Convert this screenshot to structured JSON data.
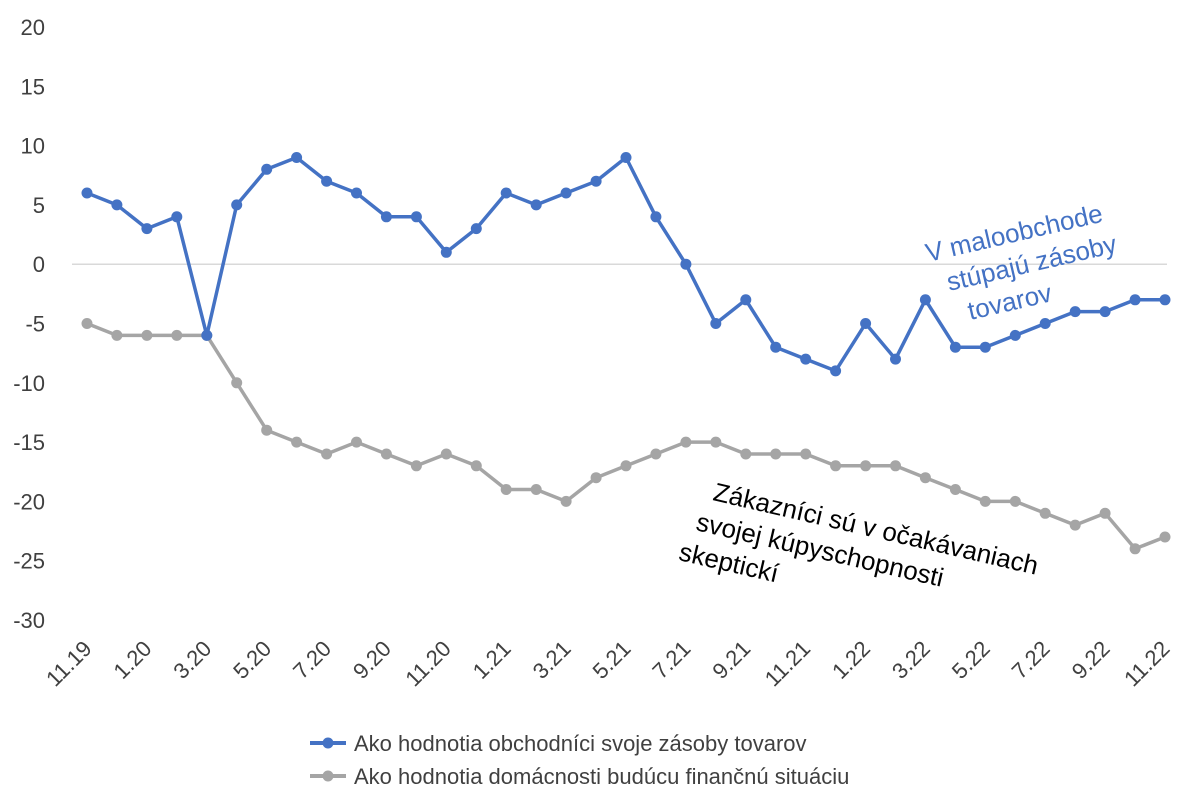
{
  "colors": {
    "series1": "#4472C4",
    "series2": "#A5A5A5",
    "axis": "#D9D9D9",
    "text": "#404040"
  },
  "chart_data": {
    "type": "line",
    "title": "",
    "xlabel": "",
    "ylabel": "",
    "ylim": [
      -30,
      20
    ],
    "yticks": [
      20,
      15,
      10,
      5,
      0,
      -5,
      -10,
      -15,
      -20,
      -25,
      -30
    ],
    "grid": false,
    "legend": "bottom",
    "x": [
      "11.19",
      "12.19",
      "1.20",
      "2.20",
      "3.20",
      "4.20",
      "5.20",
      "6.20",
      "7.20",
      "8.20",
      "9.20",
      "10.20",
      "11.20",
      "12.20",
      "1.21",
      "2.21",
      "3.21",
      "4.21",
      "5.21",
      "6.21",
      "7.21",
      "8.21",
      "9.21",
      "10.21",
      "11.21",
      "12.21",
      "1.22",
      "2.22",
      "3.22",
      "4.22",
      "5.22",
      "6.22",
      "7.22",
      "8.22",
      "9.22",
      "10.22",
      "11.22"
    ],
    "xtick_labels": [
      "11.19",
      "1.20",
      "3.20",
      "5.20",
      "7.20",
      "9.20",
      "11.20",
      "1.21",
      "3.21",
      "5.21",
      "7.21",
      "9.21",
      "11.21",
      "1.22",
      "3.22",
      "5.22",
      "7.22",
      "9.22",
      "11.22"
    ],
    "series": [
      {
        "name": "Ako hodnotia obchodníci svoje zásoby tovarov",
        "values": [
          6,
          5,
          3,
          4,
          -6,
          5,
          8,
          9,
          7,
          6,
          4,
          4,
          1,
          3,
          6,
          5,
          6,
          7,
          9,
          4,
          0,
          -5,
          -3,
          -7,
          -8,
          -9,
          -5,
          -8,
          -3,
          -7,
          -7,
          -6,
          -5,
          -4,
          -4,
          -3,
          -3
        ]
      },
      {
        "name": "Ako hodnotia domácnosti budúcu finančnú situáciu",
        "values": [
          -5,
          -6,
          -6,
          -6,
          -6,
          -10,
          -14,
          -15,
          -16,
          -15,
          -16,
          -17,
          -16,
          -17,
          -19,
          -19,
          -20,
          -18,
          -17,
          -16,
          -15,
          -15,
          -16,
          -16,
          -16,
          -17,
          -17,
          -17,
          -18,
          -19,
          -20,
          -20,
          -21,
          -22,
          -21,
          -24,
          -23
        ]
      }
    ],
    "annotations": [
      {
        "lines": [
          "V maloobchode",
          "stúpajú zásoby",
          "tovarov"
        ]
      },
      {
        "lines": [
          "Zákazníci sú v očakávaniach",
          "svojej kúpyschopnosti",
          "skeptickí"
        ]
      }
    ]
  }
}
